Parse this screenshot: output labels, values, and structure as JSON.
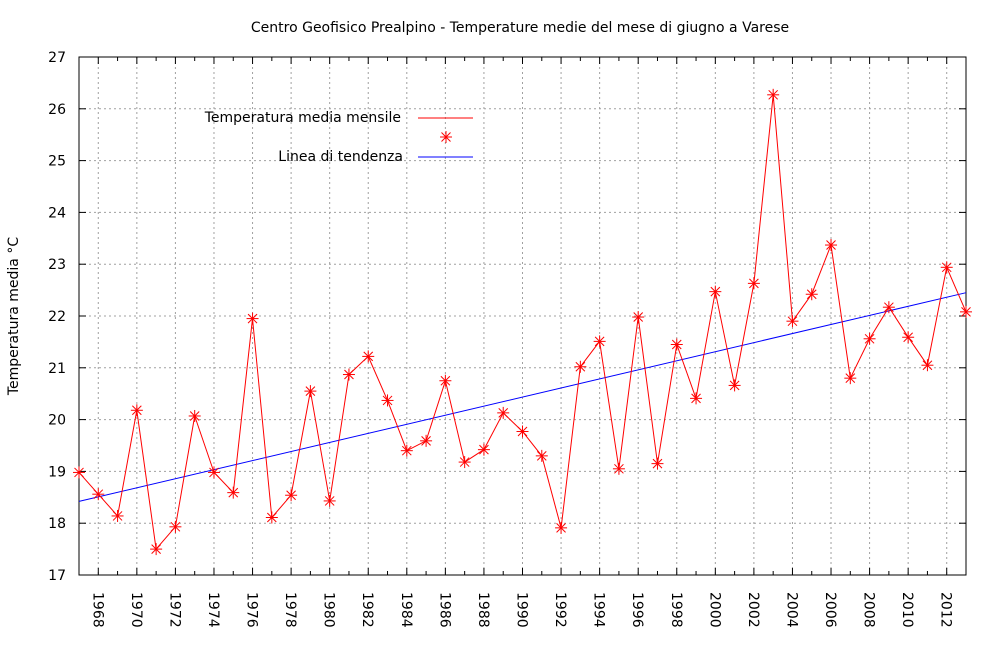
{
  "chart_data": {
    "type": "line",
    "title": "Centro Geofisico Prealpino - Temperature medie del mese di giugno a Varese",
    "xlabel": "",
    "ylabel": "Temperatura media °C",
    "xlim": [
      1967,
      2013
    ],
    "ylim": [
      17,
      27
    ],
    "x_ticks": [
      1968,
      1970,
      1972,
      1974,
      1976,
      1978,
      1980,
      1982,
      1984,
      1986,
      1988,
      1990,
      1992,
      1994,
      1996,
      1998,
      2000,
      2002,
      2004,
      2006,
      2008,
      2010,
      2012
    ],
    "y_ticks": [
      17,
      18,
      19,
      20,
      21,
      22,
      23,
      24,
      25,
      26,
      27
    ],
    "grid": true,
    "legend_position": "top-left",
    "series": [
      {
        "name": "Temperatura media mensile",
        "color": "#ff0000",
        "marker": "star",
        "x": [
          1967,
          1968,
          1969,
          1970,
          1971,
          1972,
          1973,
          1974,
          1975,
          1976,
          1977,
          1978,
          1979,
          1980,
          1981,
          1982,
          1983,
          1984,
          1985,
          1986,
          1987,
          1988,
          1989,
          1990,
          1991,
          1992,
          1993,
          1994,
          1995,
          1996,
          1997,
          1998,
          1999,
          2000,
          2001,
          2002,
          2003,
          2004,
          2005,
          2006,
          2007,
          2008,
          2009,
          2010,
          2011,
          2012,
          2013
        ],
        "y": [
          18.98,
          18.56,
          18.14,
          20.18,
          17.5,
          17.93,
          20.07,
          18.98,
          18.59,
          21.95,
          18.11,
          18.54,
          20.55,
          18.43,
          20.87,
          21.22,
          20.37,
          19.4,
          19.59,
          20.75,
          19.18,
          19.42,
          20.13,
          19.77,
          19.3,
          17.91,
          21.02,
          21.51,
          19.05,
          21.98,
          19.15,
          21.45,
          20.41,
          22.47,
          20.66,
          22.63,
          26.27,
          21.9,
          22.42,
          23.37,
          20.8,
          21.56,
          22.17,
          21.59,
          21.05,
          22.94,
          22.08
        ]
      },
      {
        "name": "Linea di tendenza",
        "color": "#0000ff",
        "marker": "none",
        "x": [
          1967,
          2013
        ],
        "y": [
          18.42,
          22.45
        ]
      }
    ]
  }
}
